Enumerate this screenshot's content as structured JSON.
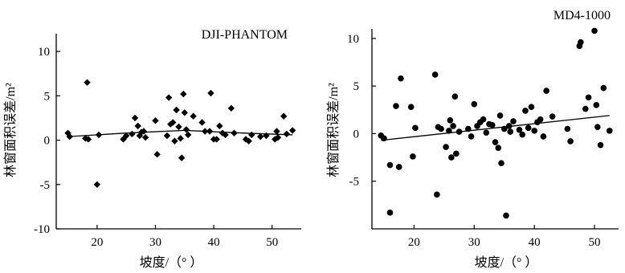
{
  "chart_data": [
    {
      "type": "scatter",
      "title": "DJI-PHANTOM",
      "xlabel": "坡度/（°  ）",
      "ylabel": "林窗面积误差/m²",
      "xlim": [
        13,
        55
      ],
      "ylim": [
        -10,
        12
      ],
      "xticks": [
        20,
        30,
        40,
        50
      ],
      "yticks": [
        -10,
        -5,
        0,
        5,
        10
      ],
      "marker": "diamond",
      "points": [
        [
          15,
          0.8
        ],
        [
          15.3,
          0.4
        ],
        [
          18,
          0.2
        ],
        [
          18.3,
          6.5
        ],
        [
          18.5,
          0.1
        ],
        [
          20,
          -5.0
        ],
        [
          20.3,
          0.6
        ],
        [
          24.5,
          0.1
        ],
        [
          25,
          0.5
        ],
        [
          26,
          0.7
        ],
        [
          26.5,
          2.5
        ],
        [
          27,
          1.6
        ],
        [
          27.3,
          0.5
        ],
        [
          27.6,
          0.9
        ],
        [
          28,
          1.0
        ],
        [
          28.3,
          0.3
        ],
        [
          30,
          2.2
        ],
        [
          30.3,
          -1.6
        ],
        [
          32,
          0.5
        ],
        [
          32.3,
          4.8
        ],
        [
          32.6,
          1.8
        ],
        [
          33,
          2.0
        ],
        [
          33.3,
          -0.1
        ],
        [
          33.6,
          3.4
        ],
        [
          34,
          1.5
        ],
        [
          34.3,
          0.2
        ],
        [
          34.5,
          -2.0
        ],
        [
          34.8,
          5.2
        ],
        [
          35,
          3.1
        ],
        [
          35.3,
          1.2
        ],
        [
          35.6,
          0.6
        ],
        [
          36.5,
          2.7
        ],
        [
          38,
          2.0
        ],
        [
          38.5,
          1.0
        ],
        [
          39.3,
          1.0
        ],
        [
          39.5,
          5.3
        ],
        [
          40,
          0.1
        ],
        [
          40.5,
          0.1
        ],
        [
          41,
          1.6
        ],
        [
          41.5,
          0.8
        ],
        [
          42,
          0.6
        ],
        [
          43,
          3.6
        ],
        [
          43.5,
          0.8
        ],
        [
          45.5,
          0.1
        ],
        [
          46,
          -0.1
        ],
        [
          46.5,
          0.6
        ],
        [
          48,
          0.4
        ],
        [
          49,
          0.5
        ],
        [
          50.5,
          0.1
        ],
        [
          50.8,
          1.0
        ],
        [
          51,
          0.3
        ],
        [
          52,
          2.7
        ],
        [
          52.5,
          0.7
        ],
        [
          53.5,
          1.1
        ]
      ],
      "trend": [
        [
          15,
          0.4
        ],
        [
          25,
          0.8
        ],
        [
          35,
          1.1
        ],
        [
          45,
          0.8
        ],
        [
          53.5,
          0.6
        ]
      ]
    },
    {
      "type": "scatter",
      "title": "MD4-1000",
      "xlabel": "坡度/（°  ）",
      "ylabel": "林窗面积误差/m²",
      "xlim": [
        13,
        54
      ],
      "ylim": [
        -10,
        11
      ],
      "xticks": [
        20,
        30,
        40,
        50
      ],
      "yticks": [
        -5,
        0,
        5,
        10
      ],
      "marker": "circle",
      "points": [
        [
          14.5,
          -0.2
        ],
        [
          15,
          -0.5
        ],
        [
          16,
          -3.3
        ],
        [
          16,
          -8.3
        ],
        [
          17,
          2.9
        ],
        [
          17.5,
          -3.5
        ],
        [
          17.8,
          5.8
        ],
        [
          19.5,
          2.8
        ],
        [
          19.8,
          -2.4
        ],
        [
          20.2,
          0.6
        ],
        [
          23.5,
          6.2
        ],
        [
          23.8,
          -6.4
        ],
        [
          24,
          0.7
        ],
        [
          24.5,
          0.5
        ],
        [
          25.3,
          -1.4
        ],
        [
          25.8,
          0.3
        ],
        [
          26,
          1.4
        ],
        [
          26.2,
          -2.5
        ],
        [
          26.5,
          0.8
        ],
        [
          26.8,
          3.9
        ],
        [
          27,
          -2.1
        ],
        [
          27.5,
          0.2
        ],
        [
          29,
          0.5
        ],
        [
          29.5,
          -0.3
        ],
        [
          30,
          3.1
        ],
        [
          30.5,
          0.8
        ],
        [
          31,
          1.2
        ],
        [
          31.5,
          1.5
        ],
        [
          32,
          0.1
        ],
        [
          32.5,
          1.0
        ],
        [
          33,
          0.9
        ],
        [
          33.5,
          -0.9
        ],
        [
          34,
          -1.5
        ],
        [
          34.3,
          1.9
        ],
        [
          34.5,
          -3.1
        ],
        [
          35,
          0.5
        ],
        [
          35.3,
          -8.6
        ],
        [
          35.8,
          0.8
        ],
        [
          36,
          0.2
        ],
        [
          36.5,
          1.3
        ],
        [
          37.5,
          0.4
        ],
        [
          38,
          -0.1
        ],
        [
          38.5,
          2.4
        ],
        [
          39,
          0.6
        ],
        [
          39.5,
          2.8
        ],
        [
          40,
          0.3
        ],
        [
          40.5,
          1.2
        ],
        [
          41,
          1.5
        ],
        [
          41.5,
          -0.3
        ],
        [
          42,
          4.5
        ],
        [
          43,
          1.8
        ],
        [
          45.5,
          0.5
        ],
        [
          46,
          -0.8
        ],
        [
          47.5,
          9.2
        ],
        [
          47.7,
          9.6
        ],
        [
          48.5,
          2.6
        ],
        [
          49,
          3.8
        ],
        [
          50,
          10.8
        ],
        [
          50.3,
          3.0
        ],
        [
          50.5,
          0.7
        ],
        [
          51,
          -1.2
        ],
        [
          51.5,
          4.8
        ],
        [
          52.5,
          0.3
        ]
      ],
      "trend": [
        [
          14.5,
          -0.7
        ],
        [
          52.5,
          1.9
        ]
      ]
    }
  ]
}
